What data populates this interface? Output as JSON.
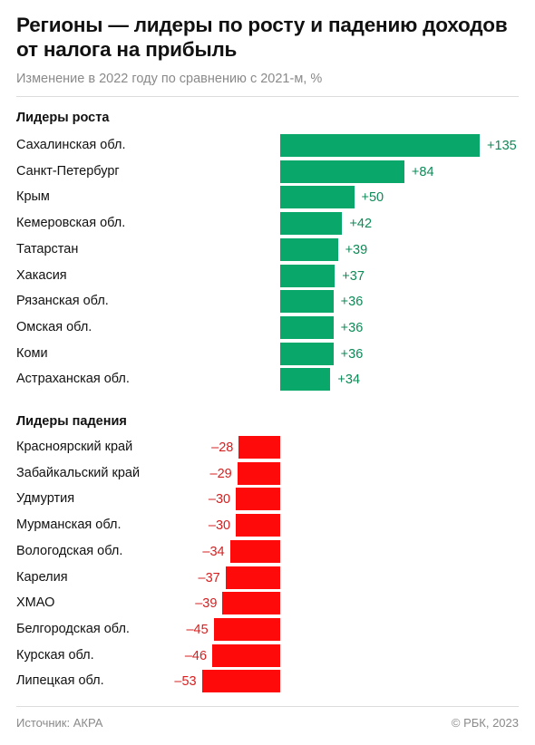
{
  "header": {
    "title": "Регионы — лидеры по росту и падению доходов от налога на прибыль",
    "subtitle": "Изменение в 2022 году по сравнению с 2021-м, %"
  },
  "footer": {
    "source": "Источник: АКРА",
    "copyright": "© РБК, 2023"
  },
  "colors": {
    "growth": "#0aa76a",
    "growth_text": "#0d8a57",
    "decline": "#ff0a0a",
    "decline_text": "#d62020"
  },
  "chart_data": [
    {
      "type": "bar",
      "orientation": "horizontal",
      "title": "Лидеры роста",
      "categories": [
        "Сахалинская обл.",
        "Санкт-Петербург",
        "Крым",
        "Кемеровская обл.",
        "Татарстан",
        "Хакасия",
        "Рязанская обл.",
        "Омская обл.",
        "Коми",
        "Астраханская обл."
      ],
      "values": [
        135,
        84,
        50,
        42,
        39,
        37,
        36,
        36,
        36,
        34
      ],
      "value_labels": [
        "+135",
        "+84",
        "+50",
        "+42",
        "+39",
        "+37",
        "+36",
        "+36",
        "+36",
        "+34"
      ]
    },
    {
      "type": "bar",
      "orientation": "horizontal",
      "title": "Лидеры падения",
      "categories": [
        "Красноярский край",
        "Забайкальский край",
        "Удмуртия",
        "Мурманская обл.",
        "Вологодская обл.",
        "Карелия",
        "ХМАО",
        "Белгородская обл.",
        "Курская обл.",
        "Липецкая обл."
      ],
      "values": [
        -28,
        -29,
        -30,
        -30,
        -34,
        -37,
        -39,
        -45,
        -46,
        -53
      ],
      "value_labels": [
        "–28",
        "–29",
        "–30",
        "–30",
        "–34",
        "–37",
        "–39",
        "–45",
        "–46",
        "–53"
      ]
    }
  ]
}
